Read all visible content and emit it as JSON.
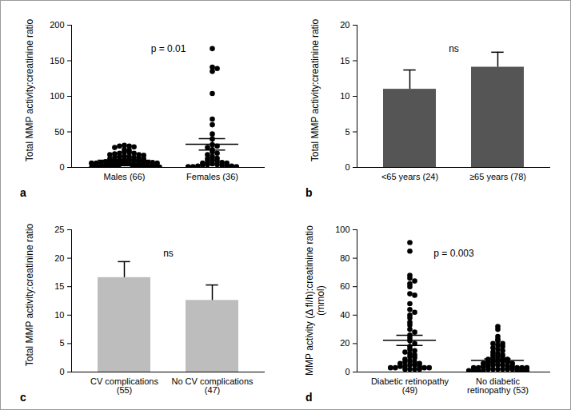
{
  "chart_data": [
    {
      "type": "scatter",
      "label": "a",
      "y_label": "Total MMP activity:creatinine ratio",
      "categories": [
        "Males (66)",
        "Females (36)"
      ],
      "values": [
        [
          31,
          30,
          30,
          29,
          28,
          25,
          24,
          22,
          21,
          20,
          20,
          19,
          18,
          18,
          17,
          16,
          15,
          15,
          14,
          14,
          13,
          12,
          12,
          11,
          11,
          10,
          10,
          9,
          9,
          8,
          8,
          8,
          7,
          7,
          7,
          6,
          6,
          6,
          5,
          5,
          5,
          5,
          4,
          4,
          4,
          4,
          3,
          3,
          3,
          3,
          3,
          2,
          2,
          2,
          2,
          2,
          2,
          1,
          1,
          1,
          1,
          1,
          1,
          1,
          0.5,
          0.5
        ],
        [
          167,
          141,
          139,
          135,
          104,
          68,
          60,
          47,
          40,
          32,
          30,
          28,
          25,
          22,
          20,
          18,
          15,
          13,
          12,
          10,
          9,
          8,
          7,
          6,
          6,
          5,
          4,
          4,
          3,
          3,
          2,
          2,
          2,
          1,
          1,
          1
        ]
      ],
      "mean": [
        10,
        32.5
      ],
      "sem": [
        1,
        8
      ],
      "color": "#000000",
      "annotation": "p = 0.01",
      "ylim": [
        0,
        200
      ],
      "yticks": [
        0,
        50,
        100,
        150,
        200
      ]
    },
    {
      "type": "bar",
      "label": "b",
      "y_label": "Total MMP activity:creatinine ratio",
      "categories": [
        "<65 years (24)",
        "≥65 years (78)"
      ],
      "values": [
        11,
        14.1
      ],
      "errors": [
        2.7,
        2.1
      ],
      "color": "#555555",
      "annotation": "ns",
      "ylim": [
        0,
        20
      ],
      "yticks": [
        0,
        5,
        10,
        15,
        20
      ]
    },
    {
      "type": "bar",
      "label": "c",
      "y_label": "Total MMP activity:creatinine ratio",
      "categories": [
        "CV complications (55)",
        "No CV complications (47)"
      ],
      "values": [
        16.6,
        12.6
      ],
      "errors": [
        2.8,
        2.7
      ],
      "color": "#bdbdbd",
      "annotation": "ns",
      "ylim": [
        0,
        25
      ],
      "yticks": [
        0,
        5,
        10,
        15,
        20,
        25
      ]
    },
    {
      "type": "scatter",
      "label": "d",
      "y_label": "MMP activity (Δ fl/h):creatinine ratio (mmol)",
      "categories": [
        "Diabetic retinopathy (49)",
        "No diabetic retinopathy (53)"
      ],
      "values": [
        [
          91,
          85,
          68,
          66,
          64,
          62,
          60,
          55,
          54,
          48,
          44,
          42,
          40,
          38,
          35,
          33,
          30,
          28,
          26,
          24,
          22,
          20,
          18,
          16,
          15,
          14,
          13,
          12,
          11,
          10,
          9,
          8,
          7,
          7,
          6,
          6,
          5,
          5,
          4,
          4,
          4,
          3,
          3,
          3,
          3,
          2,
          2,
          2,
          2
        ],
        [
          32,
          30,
          25,
          23,
          22,
          20,
          20,
          19,
          18,
          17,
          16,
          15,
          14,
          13,
          12,
          12,
          11,
          10,
          10,
          9,
          9,
          8,
          8,
          7,
          7,
          6,
          6,
          6,
          5,
          5,
          5,
          4,
          4,
          4,
          4,
          3,
          3,
          3,
          3,
          3,
          2,
          2,
          2,
          2,
          2,
          2,
          1,
          1,
          1,
          1,
          1,
          1,
          1
        ]
      ],
      "mean": [
        22.3,
        8.2
      ],
      "sem": [
        3.6,
        1.1
      ],
      "color": "#000000",
      "annotation": "p = 0.003",
      "ylim": [
        0,
        100
      ],
      "yticks": [
        0,
        20,
        40,
        60,
        80,
        100
      ]
    }
  ]
}
